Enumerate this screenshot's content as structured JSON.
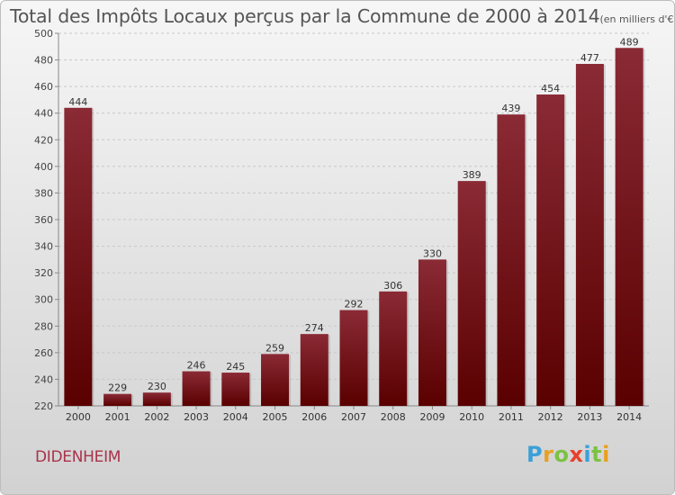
{
  "title": "Total des Impôts Locaux perçus par la Commune de 2000 à 2014",
  "title_unit": "(en milliers d'€)",
  "commune": "DIDENHEIM",
  "logo": {
    "letters": [
      "P",
      "r",
      "o",
      "x",
      "i",
      "t",
      "i"
    ],
    "colors": [
      "#3aa0d8",
      "#e8a020",
      "#7cc242",
      "#e8402a",
      "#3aa0d8",
      "#7cc242",
      "#e8a020"
    ]
  },
  "colors": {
    "bar_top": "#8a2a35",
    "bar_bottom": "#5a0000",
    "label": "#333333",
    "commune": "#a8324a"
  },
  "chart_data": {
    "type": "bar",
    "title": "Total des Impôts Locaux perçus par la Commune de 2000 à 2014",
    "categories": [
      "2000",
      "2001",
      "2002",
      "2003",
      "2004",
      "2005",
      "2006",
      "2007",
      "2008",
      "2009",
      "2010",
      "2011",
      "2012",
      "2013",
      "2014"
    ],
    "values": [
      444,
      229,
      230,
      246,
      245,
      259,
      274,
      292,
      306,
      330,
      389,
      439,
      454,
      477,
      489
    ],
    "ylim": [
      220,
      500
    ],
    "yticks": [
      220,
      240,
      260,
      280,
      300,
      320,
      340,
      360,
      380,
      400,
      420,
      440,
      460,
      480,
      500
    ],
    "xlabel": "",
    "ylabel": "",
    "grid": "horizontal dashed"
  }
}
